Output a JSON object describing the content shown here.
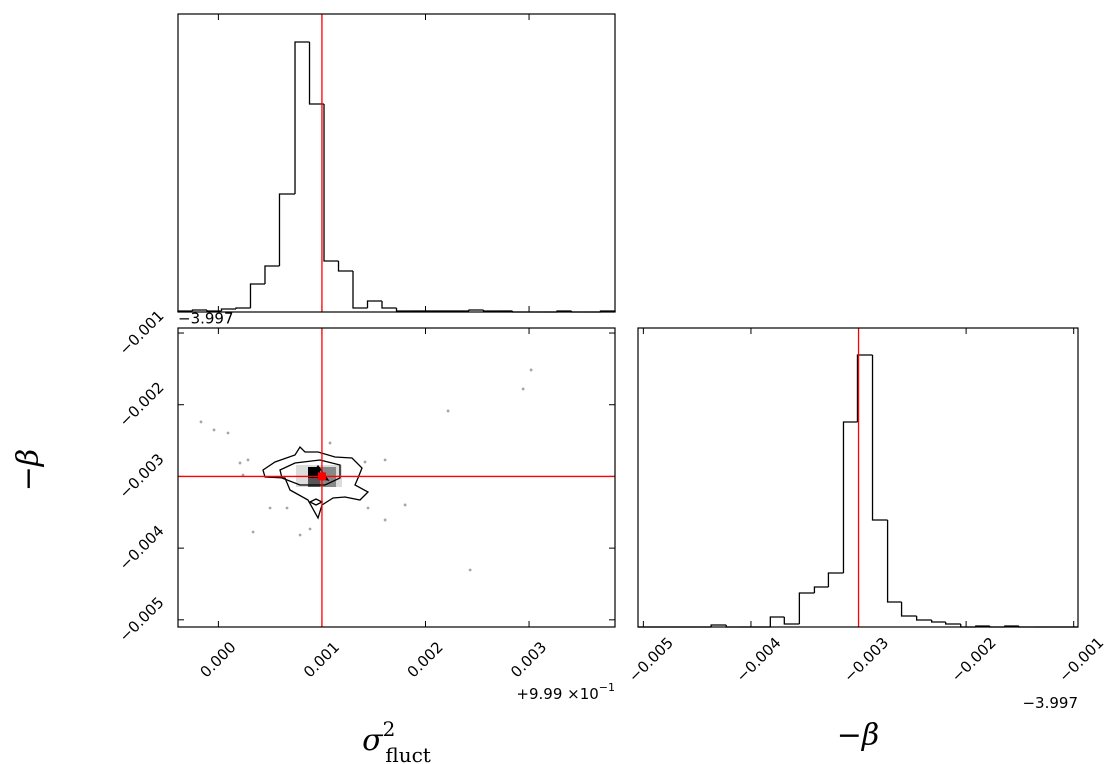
{
  "chart_data": [
    {
      "type": "histogram",
      "color": "#000000",
      "truth_color": "#ff0000",
      "truth": 0.001,
      "xlim": [
        -0.00039,
        0.00383
      ],
      "ylim": [
        0,
        298
      ],
      "xticks": [
        {
          "value": 0,
          "label": "0.000"
        },
        {
          "value": 0.001,
          "label": "0.001"
        },
        {
          "value": 0.002,
          "label": "0.002"
        },
        {
          "value": 0.003,
          "label": "0.003"
        }
      ],
      "bins": [
        -0.00039,
        -0.00025,
        -0.00011,
        3e-05,
        0.00017,
        0.00031,
        0.00045,
        0.00059,
        0.00074,
        0.00088,
        0.00102,
        0.00116,
        0.0013,
        0.00144,
        0.00158,
        0.00172,
        0.00186,
        0.002,
        0.00214,
        0.00228,
        0.00242,
        0.00256,
        0.0027,
        0.00284,
        0.00298,
        0.00313,
        0.00327,
        0.00341,
        0.00355,
        0.00369,
        0.00383
      ],
      "values": [
        1,
        2,
        1,
        3,
        4,
        28,
        46,
        118,
        270,
        208,
        51,
        41,
        4,
        11,
        4,
        1,
        1,
        1,
        1,
        1,
        2,
        1,
        1,
        0,
        0,
        0,
        1,
        0,
        0,
        1
      ]
    },
    {
      "type": "scatter",
      "color": "#808080",
      "truth_color": "#ff0000",
      "truths": [
        0.001,
        -0.003
      ],
      "xlim": [
        -0.00039,
        0.00383
      ],
      "ylim": [
        -0.0051,
        -0.00093
      ],
      "xticks": [
        {
          "value": 0,
          "label": "0.000"
        },
        {
          "value": 0.001,
          "label": "0.001"
        },
        {
          "value": 0.002,
          "label": "0.002"
        },
        {
          "value": 0.003,
          "label": "0.003"
        }
      ],
      "yticks": [
        {
          "value": -0.001,
          "label": "−0.001"
        },
        {
          "value": -0.002,
          "label": "−0.002"
        },
        {
          "value": -0.003,
          "label": "−0.003"
        },
        {
          "value": -0.004,
          "label": "−0.004"
        },
        {
          "value": -0.005,
          "label": "−0.005"
        }
      ],
      "x_offset": {
        "text": "+9.99 ×10",
        "exp": "−1"
      },
      "y_offset": "−3.997",
      "xlabel": {
        "base": "σ",
        "sup": "2",
        "sub": "fluct"
      },
      "ylabel": "−β",
      "x": [
        -0.000168,
        -4.2e-05,
        9.3e-05,
        0.000209,
        0.000286,
        0.000238,
        0.000499,
        0.000663,
        0.000789,
        0.000335,
        0.001078,
        0.00161,
        0.001416,
        0.001445,
        0.00161,
        0.001803,
        0.002218,
        0.002943,
        0.00302,
        0.002431,
        0.000885
      ],
      "y": [
        -0.00224,
        -0.002352,
        -0.002394,
        -0.002812,
        -0.00277,
        -0.00298,
        -0.00344,
        -0.00344,
        -0.003817,
        -0.003775,
        -0.002533,
        -0.00277,
        -0.002798,
        -0.00344,
        -0.003607,
        -0.003398,
        -0.002087,
        -0.00178,
        -0.001515,
        -0.004305,
        -0.003733
      ]
    },
    {
      "type": "histogram",
      "color": "#000000",
      "truth_color": "#ff0000",
      "truth": -0.003,
      "xlim": [
        -0.00505,
        -0.00096
      ],
      "ylim": [
        0,
        299
      ],
      "xticks": [
        {
          "value": -0.005,
          "label": "−0.005"
        },
        {
          "value": -0.004,
          "label": "−0.004"
        },
        {
          "value": -0.003,
          "label": "−0.003"
        },
        {
          "value": -0.002,
          "label": "−0.002"
        },
        {
          "value": -0.001,
          "label": "−0.001"
        }
      ],
      "x_offset": {
        "text": "−3.997"
      },
      "xlabel": {
        "base": "−β"
      },
      "bins": [
        -0.00505,
        -0.00491,
        -0.00478,
        -0.00464,
        -0.0045,
        -0.00437,
        -0.00423,
        -0.0041,
        -0.00396,
        -0.00382,
        -0.00369,
        -0.00355,
        -0.00341,
        -0.00328,
        -0.00314,
        -0.00301,
        -0.00287,
        -0.00273,
        -0.0026,
        -0.00246,
        -0.00232,
        -0.00219,
        -0.00205,
        -0.00191,
        -0.00178,
        -0.00164,
        -0.00151,
        -0.00137,
        -0.00123,
        -0.0011,
        -0.00096
      ],
      "values": [
        0,
        0,
        0,
        0,
        0,
        2,
        0,
        0,
        0,
        10,
        3,
        34,
        40,
        54,
        205,
        272,
        107,
        25,
        11,
        7,
        5,
        3,
        0,
        1,
        0,
        1,
        0,
        0,
        0,
        0
      ]
    }
  ]
}
